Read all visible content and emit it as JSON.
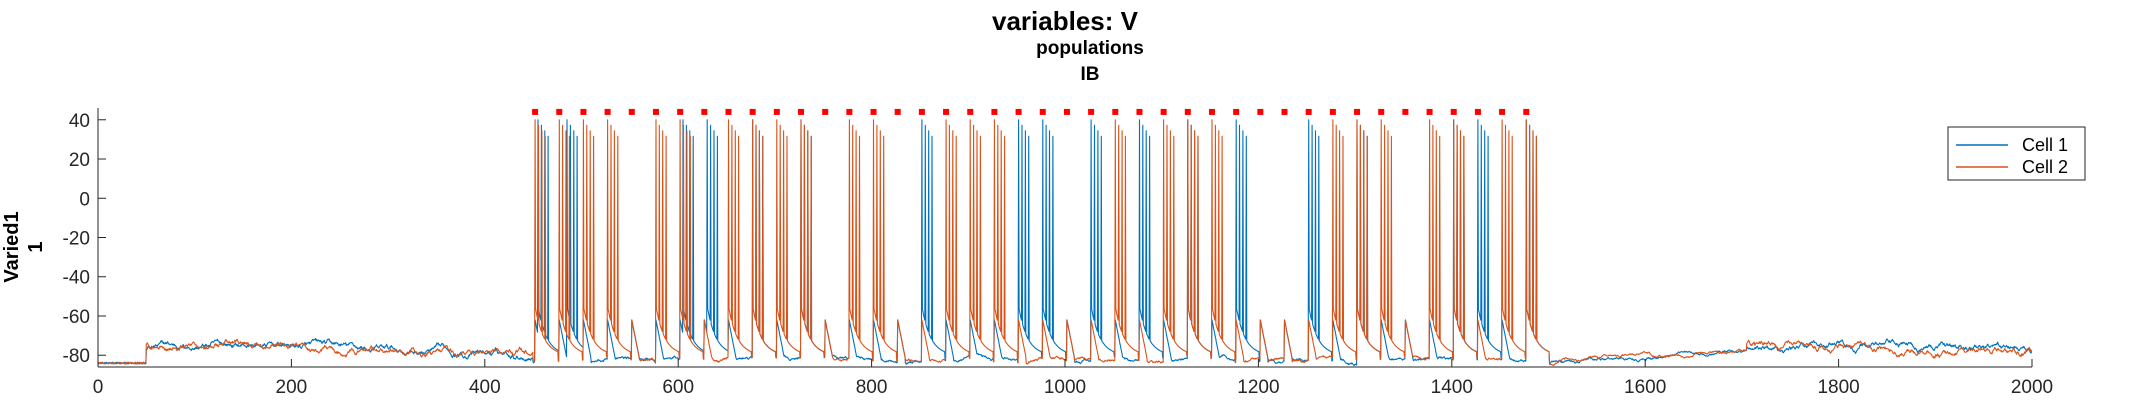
{
  "chart_data": {
    "type": "line",
    "title": "variables: V",
    "subtitle_lines": [
      "populations",
      "IB"
    ],
    "xlabel": "",
    "ylabel_lines": [
      "Varied1",
      "1"
    ],
    "xlim": [
      0,
      2000
    ],
    "ylim": [
      -86,
      46
    ],
    "x_ticks": [
      0,
      200,
      400,
      600,
      800,
      1000,
      1200,
      1400,
      1600,
      1800,
      2000
    ],
    "y_ticks": [
      -80,
      -60,
      -40,
      -20,
      0,
      20,
      40
    ],
    "grid": false,
    "legend_position": "top-right",
    "baseline_mV": -77,
    "drive_window": [
      450,
      1485
    ],
    "spike_markers": {
      "y": 44,
      "x": [
        452,
        477,
        502,
        527,
        552,
        577,
        602,
        627,
        652,
        677,
        702,
        727,
        752,
        777,
        802,
        827,
        852,
        877,
        902,
        927,
        952,
        977,
        1002,
        1027,
        1052,
        1077,
        1102,
        1127,
        1152,
        1177,
        1202,
        1227,
        1252,
        1277,
        1302,
        1327,
        1352,
        1377,
        1402,
        1427,
        1452,
        1477
      ]
    },
    "series": [
      {
        "name": "Cell 1",
        "color": "#0072BD",
        "burst_times": [
          455,
          485,
          605,
          630,
          677,
          727,
          852,
          952,
          977,
          1027,
          1077,
          1127,
          1177,
          1252,
          1302,
          1402,
          1427,
          1477
        ]
      },
      {
        "name": "Cell 2",
        "color": "#D95319",
        "burst_times": [
          452,
          477,
          502,
          527,
          577,
          602,
          652,
          677,
          702,
          727,
          777,
          802,
          877,
          902,
          927,
          1052,
          1102,
          1127,
          1152,
          1277,
          1302,
          1327,
          1377,
          1402,
          1452,
          1477
        ]
      }
    ]
  }
}
